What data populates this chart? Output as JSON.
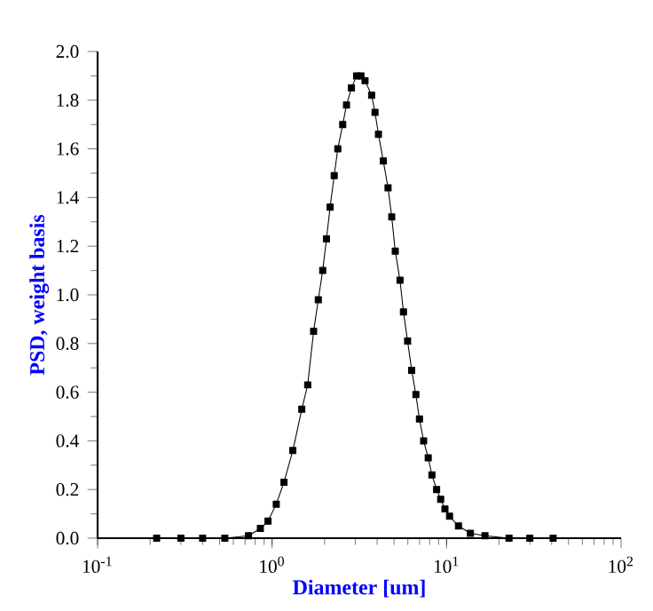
{
  "chart_data": {
    "type": "line",
    "xlabel": "Diameter [um]",
    "ylabel": "PSD, weight basis",
    "log": "x",
    "marker": "square",
    "line_style": "solid",
    "x": [
      0.218,
      0.3,
      0.4,
      0.536,
      0.733,
      0.857,
      0.948,
      1.057,
      1.17,
      1.315,
      1.48,
      1.6,
      1.73,
      1.84,
      1.95,
      2.05,
      2.15,
      2.27,
      2.38,
      2.54,
      2.67,
      2.85,
      3.05,
      3.23,
      3.41,
      3.72,
      3.89,
      4.07,
      4.34,
      4.62,
      4.85,
      5.08,
      5.41,
      5.66,
      5.98,
      6.31,
      6.67,
      6.99,
      7.39,
      7.85,
      8.24,
      8.77,
      9.25,
      9.79,
      10.4,
      11.7,
      13.7,
      16.6,
      22.8,
      30,
      40.8
    ],
    "series": [
      {
        "color": "#000000",
        "values": [
          0,
          0,
          0,
          0,
          0.01,
          0.04,
          0.07,
          0.14,
          0.23,
          0.36,
          0.53,
          0.63,
          0.85,
          0.98,
          1.1,
          1.23,
          1.36,
          1.49,
          1.6,
          1.7,
          1.78,
          1.85,
          1.9,
          1.9,
          1.88,
          1.82,
          1.75,
          1.66,
          1.55,
          1.44,
          1.32,
          1.18,
          1.06,
          0.93,
          0.81,
          0.69,
          0.59,
          0.49,
          0.4,
          0.33,
          0.26,
          0.2,
          0.16,
          0.12,
          0.09,
          0.05,
          0.02,
          0.01,
          0,
          0,
          0
        ]
      }
    ],
    "xlim": [
      0.1,
      100
    ],
    "ylim": [
      0,
      2
    ],
    "xticks": [
      {
        "value": 0.1,
        "label": "10$^{-1}$"
      },
      {
        "value": 1,
        "label": "10$^{0}$"
      },
      {
        "value": 10,
        "label": "10$^{1}$"
      },
      {
        "value": 100,
        "label": "10$^{2}$"
      }
    ],
    "yticks": [
      {
        "value": 0,
        "label": "0.0"
      },
      {
        "value": 0.2,
        "label": "0.2"
      },
      {
        "value": 0.4,
        "label": "0.4"
      },
      {
        "value": 0.6,
        "label": "0.6"
      },
      {
        "value": 0.8,
        "label": "0.8"
      },
      {
        "value": 1,
        "label": "1.0"
      },
      {
        "value": 1.2,
        "label": "1.2"
      },
      {
        "value": 1.4,
        "label": "1.4"
      },
      {
        "value": 1.6,
        "label": "1.6"
      },
      {
        "value": 1.8,
        "label": "1.8"
      },
      {
        "value": 2,
        "label": "2.0"
      }
    ],
    "grid": false
  }
}
